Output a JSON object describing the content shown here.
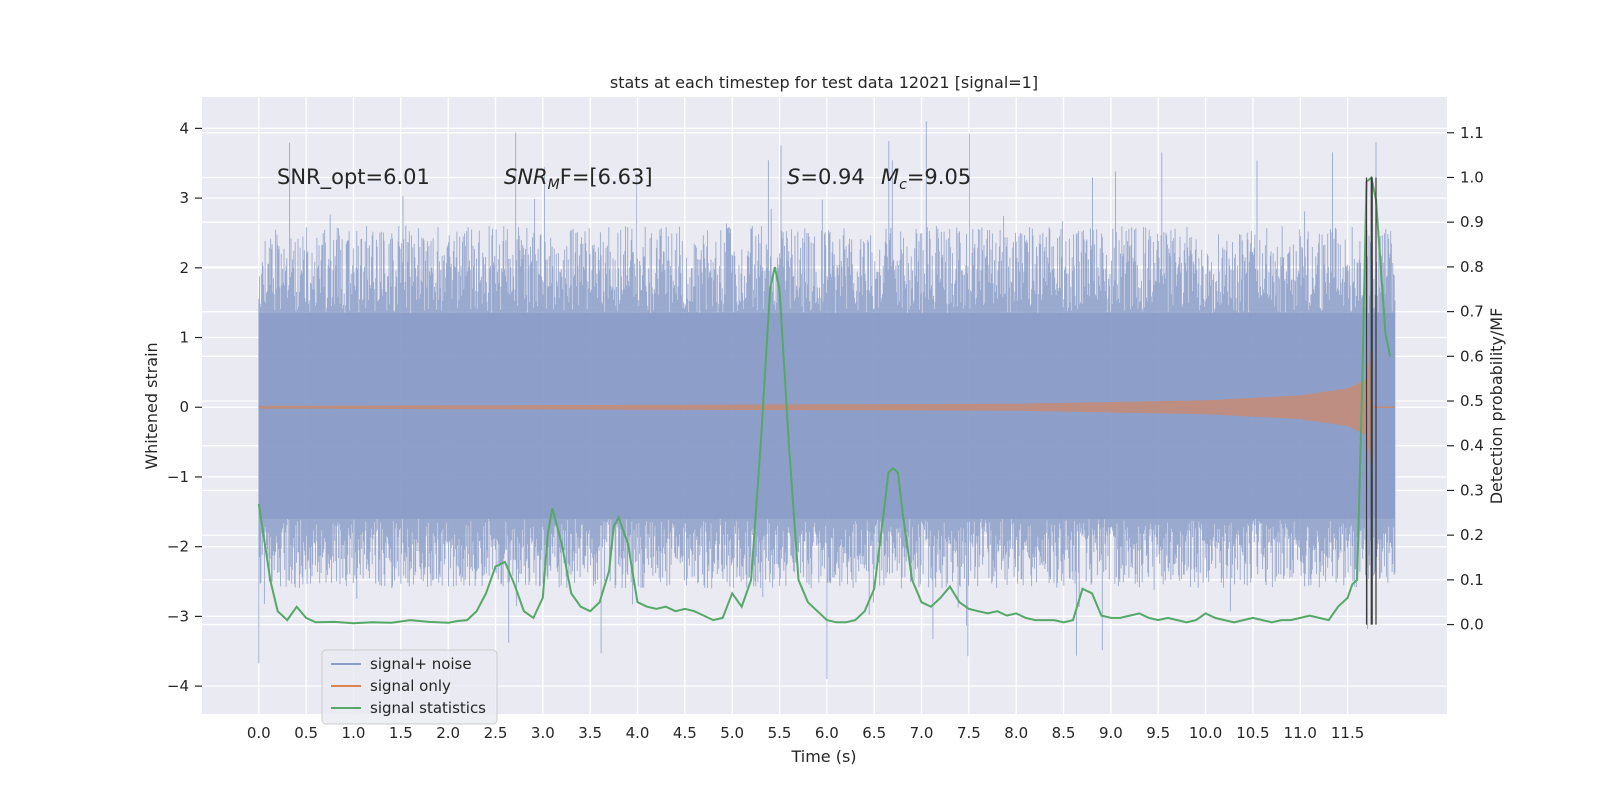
{
  "chart_data": {
    "type": "line",
    "title": "stats at each timestep for test data 12021 [signal=1]",
    "xlabel": "Time (s)",
    "ylabel_left": "Whitened strain",
    "ylabel_right": "Detection probability/MF",
    "xlim": [
      -0.6,
      12.55
    ],
    "ylim_left": [
      -4.4,
      4.45
    ],
    "ylim_right": [
      -0.2,
      1.18
    ],
    "xticks": [
      "0.0",
      "0.5",
      "1.0",
      "1.5",
      "2.0",
      "2.5",
      "3.0",
      "3.5",
      "4.0",
      "4.5",
      "5.0",
      "5.5",
      "6.0",
      "6.5",
      "7.0",
      "7.5",
      "8.0",
      "8.5",
      "9.0",
      "9.5",
      "10.0",
      "10.5",
      "11.0",
      "11.5"
    ],
    "yticks_left": [
      "4",
      "3",
      "2",
      "1",
      "0",
      "−1",
      "−2",
      "−3",
      "−4"
    ],
    "yticks_right": [
      "1.1",
      "1.0",
      "0.9",
      "0.8",
      "0.7",
      "0.6",
      "0.5",
      "0.4",
      "0.3",
      "0.2",
      "0.1",
      "0.0"
    ],
    "grid": true,
    "legend_position": "lower-left",
    "annotations": {
      "snr_opt": "SNR_opt=6.01",
      "snr_mf_prefix": "SNR",
      "snr_mf_sub": "M",
      "snr_mf_suffix": "F=[6.63]",
      "s_prefix": "S",
      "s_value": "=0.94",
      "mc_prefix": "M",
      "mc_sub": "c",
      "mc_value": "=9.05"
    },
    "series": [
      {
        "name": "signal+ noise",
        "axis": "left",
        "color": "#8c9ec8",
        "t_range": [
          0.0,
          12.0
        ],
        "envelope": {
          "core_low": -1.6,
          "core_high": 1.35,
          "typical_low": -2.6,
          "typical_high": 2.6,
          "max": 4.1,
          "min": -3.9
        }
      },
      {
        "name": "signal only",
        "axis": "left",
        "color": "#dd8452",
        "t_range": [
          0.0,
          12.0
        ],
        "amplitude_points": [
          [
            0.0,
            0.02
          ],
          [
            8.0,
            0.05
          ],
          [
            10.0,
            0.1
          ],
          [
            11.0,
            0.17
          ],
          [
            11.5,
            0.27
          ],
          [
            11.7,
            0.4
          ],
          [
            11.76,
            1.0
          ]
        ]
      },
      {
        "name": "signal statistics",
        "axis": "right",
        "color": "#55a868",
        "x": [
          0.0,
          0.1,
          0.12,
          0.2,
          0.3,
          0.4,
          0.5,
          0.6,
          0.8,
          1.0,
          1.2,
          1.4,
          1.6,
          1.8,
          2.0,
          2.1,
          2.2,
          2.3,
          2.4,
          2.5,
          2.6,
          2.7,
          2.8,
          2.9,
          3.0,
          3.05,
          3.1,
          3.2,
          3.3,
          3.4,
          3.5,
          3.6,
          3.7,
          3.75,
          3.8,
          3.9,
          4.0,
          4.1,
          4.2,
          4.3,
          4.4,
          4.5,
          4.6,
          4.7,
          4.8,
          4.9,
          5.0,
          5.1,
          5.2,
          5.3,
          5.4,
          5.45,
          5.5,
          5.6,
          5.7,
          5.8,
          5.9,
          6.0,
          6.1,
          6.2,
          6.3,
          6.4,
          6.5,
          6.6,
          6.65,
          6.7,
          6.75,
          6.8,
          6.9,
          7.0,
          7.1,
          7.2,
          7.3,
          7.4,
          7.5,
          7.6,
          7.7,
          7.8,
          7.9,
          8.0,
          8.1,
          8.2,
          8.3,
          8.4,
          8.5,
          8.6,
          8.7,
          8.8,
          8.9,
          9.0,
          9.1,
          9.2,
          9.3,
          9.4,
          9.5,
          9.6,
          9.7,
          9.8,
          9.9,
          10.0,
          10.1,
          10.2,
          10.3,
          10.4,
          10.5,
          10.6,
          10.7,
          10.8,
          10.9,
          11.0,
          11.1,
          11.2,
          11.3,
          11.4,
          11.5,
          11.55,
          11.6,
          11.65,
          11.7,
          11.75,
          11.8,
          11.9,
          11.95
        ],
        "values": [
          0.27,
          0.13,
          0.1,
          0.03,
          0.01,
          0.04,
          0.015,
          0.005,
          0.006,
          0.003,
          0.005,
          0.004,
          0.01,
          0.006,
          0.004,
          0.008,
          0.01,
          0.03,
          0.07,
          0.13,
          0.14,
          0.09,
          0.03,
          0.015,
          0.06,
          0.2,
          0.26,
          0.18,
          0.07,
          0.04,
          0.03,
          0.05,
          0.12,
          0.22,
          0.24,
          0.18,
          0.05,
          0.04,
          0.035,
          0.04,
          0.03,
          0.035,
          0.03,
          0.02,
          0.01,
          0.015,
          0.07,
          0.04,
          0.1,
          0.4,
          0.75,
          0.8,
          0.75,
          0.4,
          0.1,
          0.05,
          0.03,
          0.01,
          0.005,
          0.005,
          0.01,
          0.03,
          0.08,
          0.25,
          0.34,
          0.35,
          0.34,
          0.25,
          0.1,
          0.05,
          0.04,
          0.06,
          0.085,
          0.05,
          0.035,
          0.03,
          0.025,
          0.03,
          0.02,
          0.025,
          0.015,
          0.01,
          0.01,
          0.01,
          0.005,
          0.01,
          0.08,
          0.07,
          0.02,
          0.015,
          0.015,
          0.02,
          0.025,
          0.015,
          0.01,
          0.015,
          0.01,
          0.005,
          0.01,
          0.025,
          0.015,
          0.01,
          0.005,
          0.01,
          0.015,
          0.01,
          0.005,
          0.01,
          0.01,
          0.015,
          0.02,
          0.015,
          0.01,
          0.04,
          0.06,
          0.09,
          0.1,
          0.5,
          0.99,
          1.0,
          0.95,
          0.65,
          0.6
        ]
      },
      {
        "name": "peak marker",
        "axis": "right",
        "color": "#3a3a3a",
        "x": [
          11.7,
          11.75,
          11.76,
          11.8
        ]
      }
    ]
  }
}
